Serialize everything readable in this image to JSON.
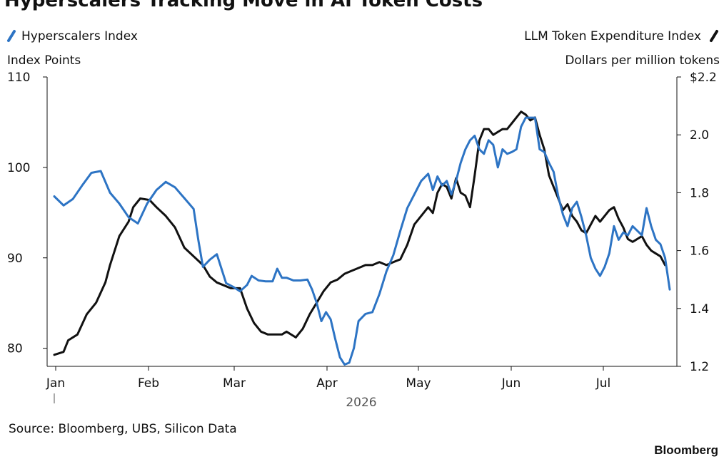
{
  "chart_data": {
    "type": "line",
    "title": "Hyperscalers Tracking Move in AI Token Costs",
    "left_axis": {
      "label": "Index Points",
      "range": [
        78,
        110
      ],
      "ticks": [
        80,
        90,
        100,
        110
      ],
      "tick_labels": [
        "80",
        "90",
        "100",
        "110"
      ]
    },
    "right_axis": {
      "label": "Dollars per million tokens",
      "range": [
        1.2,
        2.2
      ],
      "ticks": [
        1.2,
        1.4,
        1.6,
        1.8,
        2.0,
        2.2
      ],
      "tick_labels": [
        "1.2",
        "1.4",
        "1.6",
        "1.8",
        "2.0",
        "$2.2"
      ]
    },
    "x_axis": {
      "months": [
        "Jan",
        "Feb",
        "Mar",
        "Apr",
        "May",
        "Jun",
        "Jul"
      ],
      "year": "2026"
    },
    "series": [
      {
        "name": "Hyperscalers Index",
        "axis": "left",
        "color": "#2d74c4",
        "points": [
          [
            0,
            96.8
          ],
          [
            4,
            95.8
          ],
          [
            8,
            96.5
          ],
          [
            12,
            98.0
          ],
          [
            16,
            99.4
          ],
          [
            20,
            99.6
          ],
          [
            24,
            97.2
          ],
          [
            28,
            96.0
          ],
          [
            32,
            94.5
          ],
          [
            36,
            93.8
          ],
          [
            40,
            96.0
          ],
          [
            44,
            97.5
          ],
          [
            48,
            98.4
          ],
          [
            52,
            97.8
          ],
          [
            56,
            96.6
          ],
          [
            60,
            95.4
          ],
          [
            62,
            92.0
          ],
          [
            64,
            89.0
          ],
          [
            67,
            89.8
          ],
          [
            70,
            90.4
          ],
          [
            72,
            88.8
          ],
          [
            74,
            87.2
          ],
          [
            77,
            86.8
          ],
          [
            80,
            86.3
          ],
          [
            83,
            87.0
          ],
          [
            85,
            88.0
          ],
          [
            88,
            87.5
          ],
          [
            91,
            87.4
          ],
          [
            94,
            87.4
          ],
          [
            96,
            88.8
          ],
          [
            98,
            87.8
          ],
          [
            100,
            87.8
          ],
          [
            103,
            87.5
          ],
          [
            106,
            87.5
          ],
          [
            109,
            87.6
          ],
          [
            111,
            86.5
          ],
          [
            113,
            85.0
          ],
          [
            115,
            83.0
          ],
          [
            117,
            84.0
          ],
          [
            119,
            83.2
          ],
          [
            121,
            81.0
          ],
          [
            123,
            79.0
          ],
          [
            125,
            78.2
          ],
          [
            127,
            78.4
          ],
          [
            129,
            80.0
          ],
          [
            131,
            83.0
          ],
          [
            134,
            83.8
          ],
          [
            137,
            84.0
          ],
          [
            140,
            86.0
          ],
          [
            143,
            88.5
          ],
          [
            146,
            90.3
          ],
          [
            149,
            93.0
          ],
          [
            152,
            95.5
          ],
          [
            155,
            97.0
          ],
          [
            158,
            98.5
          ],
          [
            161,
            99.3
          ],
          [
            163,
            97.5
          ],
          [
            165,
            99.0
          ],
          [
            167,
            98.0
          ],
          [
            169,
            98.5
          ],
          [
            171,
            97.0
          ],
          [
            173,
            98.5
          ],
          [
            175,
            100.5
          ],
          [
            177,
            102.0
          ],
          [
            179,
            103.0
          ],
          [
            181,
            103.5
          ],
          [
            183,
            102.0
          ],
          [
            185,
            101.5
          ],
          [
            187,
            103.0
          ],
          [
            189,
            102.5
          ],
          [
            191,
            100.0
          ],
          [
            193,
            102.0
          ],
          [
            195,
            101.5
          ],
          [
            197,
            101.7
          ],
          [
            199,
            102.0
          ],
          [
            201,
            104.5
          ],
          [
            203,
            105.5
          ],
          [
            205,
            105.5
          ],
          [
            207,
            105.5
          ],
          [
            209,
            102.0
          ],
          [
            211,
            101.7
          ],
          [
            213,
            100.5
          ],
          [
            215,
            99.5
          ],
          [
            217,
            96.8
          ],
          [
            219,
            94.8
          ],
          [
            221,
            93.5
          ],
          [
            223,
            95.5
          ],
          [
            225,
            96.2
          ],
          [
            227,
            94.5
          ],
          [
            229,
            92.5
          ],
          [
            231,
            90.0
          ],
          [
            233,
            88.8
          ],
          [
            235,
            88.0
          ],
          [
            237,
            89.0
          ],
          [
            239,
            90.5
          ],
          [
            241,
            93.5
          ],
          [
            243,
            92.0
          ],
          [
            245,
            92.8
          ],
          [
            247,
            92.5
          ],
          [
            249,
            93.5
          ],
          [
            251,
            93.0
          ],
          [
            253,
            92.5
          ],
          [
            255,
            95.5
          ],
          [
            257,
            93.5
          ],
          [
            259,
            92.0
          ],
          [
            261,
            91.5
          ],
          [
            263,
            90.0
          ],
          [
            265,
            86.5
          ]
        ]
      },
      {
        "name": "LLM Token Expenditure Index",
        "axis": "right",
        "color": "#111111",
        "points": [
          [
            0,
            1.24
          ],
          [
            4,
            1.25
          ],
          [
            6,
            1.29
          ],
          [
            10,
            1.31
          ],
          [
            14,
            1.38
          ],
          [
            18,
            1.42
          ],
          [
            22,
            1.49
          ],
          [
            24,
            1.55
          ],
          [
            28,
            1.65
          ],
          [
            32,
            1.7
          ],
          [
            34,
            1.75
          ],
          [
            37,
            1.78
          ],
          [
            41,
            1.775
          ],
          [
            44,
            1.75
          ],
          [
            48,
            1.72
          ],
          [
            52,
            1.68
          ],
          [
            56,
            1.61
          ],
          [
            60,
            1.58
          ],
          [
            64,
            1.55
          ],
          [
            67,
            1.51
          ],
          [
            70,
            1.49
          ],
          [
            73,
            1.48
          ],
          [
            76,
            1.47
          ],
          [
            80,
            1.47
          ],
          [
            83,
            1.4
          ],
          [
            86,
            1.35
          ],
          [
            89,
            1.32
          ],
          [
            92,
            1.31
          ],
          [
            95,
            1.31
          ],
          [
            98,
            1.31
          ],
          [
            100,
            1.32
          ],
          [
            104,
            1.3
          ],
          [
            107,
            1.33
          ],
          [
            110,
            1.38
          ],
          [
            113,
            1.42
          ],
          [
            116,
            1.46
          ],
          [
            119,
            1.49
          ],
          [
            122,
            1.5
          ],
          [
            125,
            1.52
          ],
          [
            128,
            1.53
          ],
          [
            131,
            1.54
          ],
          [
            134,
            1.55
          ],
          [
            137,
            1.55
          ],
          [
            140,
            1.56
          ],
          [
            143,
            1.55
          ],
          [
            146,
            1.56
          ],
          [
            149,
            1.57
          ],
          [
            152,
            1.62
          ],
          [
            155,
            1.69
          ],
          [
            158,
            1.72
          ],
          [
            161,
            1.75
          ],
          [
            163,
            1.73
          ],
          [
            165,
            1.8
          ],
          [
            167,
            1.83
          ],
          [
            169,
            1.82
          ],
          [
            171,
            1.78
          ],
          [
            173,
            1.85
          ],
          [
            175,
            1.8
          ],
          [
            177,
            1.79
          ],
          [
            179,
            1.75
          ],
          [
            181,
            1.86
          ],
          [
            183,
            1.98
          ],
          [
            185,
            2.02
          ],
          [
            187,
            2.02
          ],
          [
            189,
            2.0
          ],
          [
            191,
            2.01
          ],
          [
            193,
            2.02
          ],
          [
            195,
            2.02
          ],
          [
            197,
            2.04
          ],
          [
            199,
            2.06
          ],
          [
            201,
            2.08
          ],
          [
            203,
            2.07
          ],
          [
            205,
            2.05
          ],
          [
            207,
            2.06
          ],
          [
            209,
            2.0
          ],
          [
            211,
            1.95
          ],
          [
            213,
            1.86
          ],
          [
            215,
            1.82
          ],
          [
            217,
            1.78
          ],
          [
            219,
            1.74
          ],
          [
            221,
            1.76
          ],
          [
            223,
            1.72
          ],
          [
            225,
            1.7
          ],
          [
            227,
            1.67
          ],
          [
            229,
            1.66
          ],
          [
            231,
            1.69
          ],
          [
            233,
            1.72
          ],
          [
            235,
            1.7
          ],
          [
            237,
            1.72
          ],
          [
            239,
            1.74
          ],
          [
            241,
            1.75
          ],
          [
            243,
            1.71
          ],
          [
            245,
            1.68
          ],
          [
            247,
            1.64
          ],
          [
            249,
            1.63
          ],
          [
            251,
            1.64
          ],
          [
            253,
            1.65
          ],
          [
            255,
            1.62
          ],
          [
            257,
            1.6
          ],
          [
            259,
            1.59
          ],
          [
            261,
            1.58
          ],
          [
            263,
            1.55
          ]
        ]
      }
    ]
  },
  "legend": {
    "left": "Hyperscalers Index",
    "right": "LLM Token Expenditure Index"
  },
  "source": "Source: Bloomberg, UBS, Silicon Data",
  "brand": "Bloomberg"
}
